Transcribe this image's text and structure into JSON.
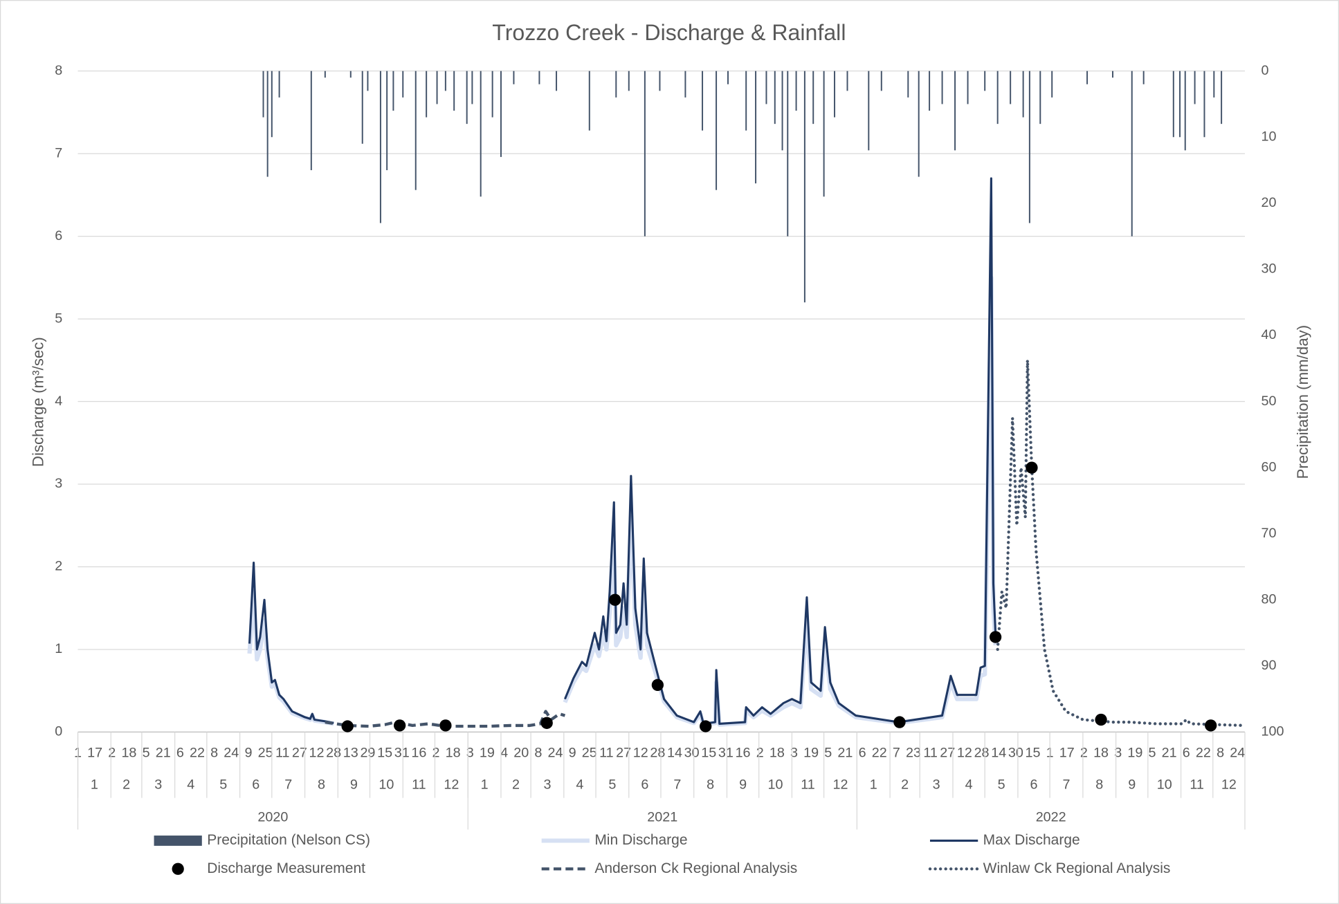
{
  "chart_data": {
    "type": "combo",
    "title": "Trozzo Creek - Discharge & Rainfall",
    "y_label": "Discharge  (m³/sec)",
    "y2_label": "Precipitation (mm/day)",
    "xlim": [
      "2020-01-01",
      "2022-12-31"
    ],
    "ylim": [
      0,
      8
    ],
    "yticks": [
      0,
      1,
      2,
      3,
      4,
      5,
      6,
      7,
      8
    ],
    "y2lim": [
      100,
      0
    ],
    "y2ticks": [
      0,
      10,
      20,
      30,
      40,
      50,
      60,
      70,
      80,
      90,
      100
    ],
    "grid": true,
    "legend": "bottom",
    "xticks": [
      {
        "value": "2020-01-01",
        "label": "1"
      },
      {
        "value": "2020-01-17",
        "label": "17"
      },
      {
        "value": "2020-02-02",
        "label": "2"
      },
      {
        "value": "2020-02-18",
        "label": "18"
      },
      {
        "value": "2020-03-05",
        "label": "5"
      },
      {
        "value": "2020-03-21",
        "label": "21"
      },
      {
        "value": "2020-04-06",
        "label": "6"
      },
      {
        "value": "2020-04-22",
        "label": "22"
      },
      {
        "value": "2020-05-08",
        "label": "8"
      },
      {
        "value": "2020-05-24",
        "label": "24"
      },
      {
        "value": "2020-06-09",
        "label": "9"
      },
      {
        "value": "2020-06-25",
        "label": "25"
      },
      {
        "value": "2020-07-11",
        "label": "11"
      },
      {
        "value": "2020-07-27",
        "label": "27"
      },
      {
        "value": "2020-08-12",
        "label": "12"
      },
      {
        "value": "2020-08-28",
        "label": "28"
      },
      {
        "value": "2020-09-13",
        "label": "13"
      },
      {
        "value": "2020-09-29",
        "label": "29"
      },
      {
        "value": "2020-10-15",
        "label": "15"
      },
      {
        "value": "2020-10-31",
        "label": "31"
      },
      {
        "value": "2020-11-16",
        "label": "16"
      },
      {
        "value": "2020-12-02",
        "label": "2"
      },
      {
        "value": "2020-12-18",
        "label": "18"
      },
      {
        "value": "2021-01-03",
        "label": "3"
      },
      {
        "value": "2021-01-19",
        "label": "19"
      },
      {
        "value": "2021-02-04",
        "label": "4"
      },
      {
        "value": "2021-02-20",
        "label": "20"
      },
      {
        "value": "2021-03-08",
        "label": "8"
      },
      {
        "value": "2021-03-24",
        "label": "24"
      },
      {
        "value": "2021-04-09",
        "label": "9"
      },
      {
        "value": "2021-04-25",
        "label": "25"
      },
      {
        "value": "2021-05-11",
        "label": "11"
      },
      {
        "value": "2021-05-27",
        "label": "27"
      },
      {
        "value": "2021-06-12",
        "label": "12"
      },
      {
        "value": "2021-06-28",
        "label": "28"
      },
      {
        "value": "2021-07-14",
        "label": "14"
      },
      {
        "value": "2021-07-30",
        "label": "30"
      },
      {
        "value": "2021-08-15",
        "label": "15"
      },
      {
        "value": "2021-08-31",
        "label": "31"
      },
      {
        "value": "2021-09-16",
        "label": "16"
      },
      {
        "value": "2021-10-02",
        "label": "2"
      },
      {
        "value": "2021-10-18",
        "label": "18"
      },
      {
        "value": "2021-11-03",
        "label": "3"
      },
      {
        "value": "2021-11-19",
        "label": "19"
      },
      {
        "value": "2021-12-05",
        "label": "5"
      },
      {
        "value": "2021-12-21",
        "label": "21"
      },
      {
        "value": "2022-01-06",
        "label": "6"
      },
      {
        "value": "2022-01-22",
        "label": "22"
      },
      {
        "value": "2022-02-07",
        "label": "7"
      },
      {
        "value": "2022-02-23",
        "label": "23"
      },
      {
        "value": "2022-03-11",
        "label": "11"
      },
      {
        "value": "2022-03-27",
        "label": "27"
      },
      {
        "value": "2022-04-12",
        "label": "12"
      },
      {
        "value": "2022-04-28",
        "label": "28"
      },
      {
        "value": "2022-05-14",
        "label": "14"
      },
      {
        "value": "2022-05-30",
        "label": "30"
      },
      {
        "value": "2022-06-15",
        "label": "15"
      },
      {
        "value": "2022-07-01",
        "label": "1"
      },
      {
        "value": "2022-07-17",
        "label": "17"
      },
      {
        "value": "2022-08-02",
        "label": "2"
      },
      {
        "value": "2022-08-18",
        "label": "18"
      },
      {
        "value": "2022-09-03",
        "label": "3"
      },
      {
        "value": "2022-09-19",
        "label": "19"
      },
      {
        "value": "2022-10-05",
        "label": "5"
      },
      {
        "value": "2022-10-21",
        "label": "21"
      },
      {
        "value": "2022-11-06",
        "label": "6"
      },
      {
        "value": "2022-11-22",
        "label": "22"
      },
      {
        "value": "2022-12-08",
        "label": "8"
      },
      {
        "value": "2022-12-24",
        "label": "24"
      }
    ],
    "months": [
      {
        "value": "2020-01",
        "label": "1"
      },
      {
        "value": "2020-02",
        "label": "2"
      },
      {
        "value": "2020-03",
        "label": "3"
      },
      {
        "value": "2020-04",
        "label": "4"
      },
      {
        "value": "2020-05",
        "label": "5"
      },
      {
        "value": "2020-06",
        "label": "6"
      },
      {
        "value": "2020-07",
        "label": "7"
      },
      {
        "value": "2020-08",
        "label": "8"
      },
      {
        "value": "2020-09",
        "label": "9"
      },
      {
        "value": "2020-10",
        "label": "10"
      },
      {
        "value": "2020-11",
        "label": "11"
      },
      {
        "value": "2020-12",
        "label": "12"
      },
      {
        "value": "2021-01",
        "label": "1"
      },
      {
        "value": "2021-02",
        "label": "2"
      },
      {
        "value": "2021-03",
        "label": "3"
      },
      {
        "value": "2021-04",
        "label": "4"
      },
      {
        "value": "2021-05",
        "label": "5"
      },
      {
        "value": "2021-06",
        "label": "6"
      },
      {
        "value": "2021-07",
        "label": "7"
      },
      {
        "value": "2021-08",
        "label": "8"
      },
      {
        "value": "2021-09",
        "label": "9"
      },
      {
        "value": "2021-10",
        "label": "10"
      },
      {
        "value": "2021-11",
        "label": "11"
      },
      {
        "value": "2021-12",
        "label": "12"
      },
      {
        "value": "2022-01",
        "label": "1"
      },
      {
        "value": "2022-02",
        "label": "2"
      },
      {
        "value": "2022-03",
        "label": "3"
      },
      {
        "value": "2022-04",
        "label": "4"
      },
      {
        "value": "2022-05",
        "label": "5"
      },
      {
        "value": "2022-06",
        "label": "6"
      },
      {
        "value": "2022-07",
        "label": "7"
      },
      {
        "value": "2022-08",
        "label": "8"
      },
      {
        "value": "2022-09",
        "label": "9"
      },
      {
        "value": "2022-10",
        "label": "10"
      },
      {
        "value": "2022-11",
        "label": "11"
      },
      {
        "value": "2022-12",
        "label": "12"
      }
    ],
    "years": [
      "2020",
      "2021",
      "2022"
    ],
    "series": [
      {
        "name": "Precipitation (Nelson CS)",
        "type": "bar",
        "axis": "y2",
        "color": "#44546a",
        "x": [
          "2020-06-23",
          "2020-06-27",
          "2020-07-01",
          "2020-07-08",
          "2020-08-07",
          "2020-08-20",
          "2020-09-13",
          "2020-09-24",
          "2020-09-29",
          "2020-10-11",
          "2020-10-17",
          "2020-10-23",
          "2020-11-01",
          "2020-11-13",
          "2020-11-23",
          "2020-12-03",
          "2020-12-11",
          "2020-12-19",
          "2020-12-31",
          "2021-01-05",
          "2021-01-13",
          "2021-01-24",
          "2021-02-01",
          "2021-02-13",
          "2021-03-09",
          "2021-03-25",
          "2021-04-25",
          "2021-05-20",
          "2021-06-01",
          "2021-06-16",
          "2021-06-30",
          "2021-07-24",
          "2021-08-09",
          "2021-08-22",
          "2021-09-02",
          "2021-09-19",
          "2021-09-28",
          "2021-10-08",
          "2021-10-16",
          "2021-10-23",
          "2021-10-28",
          "2021-11-05",
          "2021-11-13",
          "2021-11-21",
          "2021-12-01",
          "2021-12-11",
          "2021-12-23",
          "2022-01-12",
          "2022-01-24",
          "2022-02-18",
          "2022-02-28",
          "2022-03-10",
          "2022-03-22",
          "2022-04-03",
          "2022-04-15",
          "2022-05-01",
          "2022-05-13",
          "2022-05-25",
          "2022-06-06",
          "2022-06-12",
          "2022-06-22",
          "2022-07-03",
          "2022-08-05",
          "2022-08-29",
          "2022-09-16",
          "2022-09-27",
          "2022-10-25",
          "2022-10-31",
          "2022-11-05",
          "2022-11-14",
          "2022-11-23",
          "2022-12-02",
          "2022-12-09"
        ],
        "values": [
          7,
          16,
          10,
          4,
          15,
          1,
          1,
          11,
          3,
          23,
          15,
          6,
          4,
          18,
          7,
          5,
          3,
          6,
          8,
          5,
          19,
          7,
          13,
          2,
          2,
          3,
          9,
          4,
          3,
          25,
          3,
          4,
          9,
          18,
          2,
          9,
          17,
          5,
          8,
          12,
          25,
          6,
          35,
          8,
          19,
          7,
          3,
          12,
          3,
          4,
          16,
          6,
          5,
          12,
          5,
          3,
          8,
          5,
          7,
          23,
          8,
          4,
          2,
          1,
          25,
          2,
          10,
          10,
          12,
          5,
          10,
          4,
          8
        ]
      },
      {
        "name": "Min Discharge",
        "type": "line",
        "axis": "y",
        "color": "#d6e0f3",
        "width": 5,
        "x": [
          "2020-06-10",
          "2020-06-14",
          "2020-06-17",
          "2020-06-20",
          "2020-06-24",
          "2020-06-27",
          "2020-07-01",
          "2020-07-04",
          "2020-07-08",
          "2020-07-12",
          "2020-07-20",
          "2020-08-01",
          "2020-08-06",
          "2020-08-08",
          "2020-08-10",
          "2020-08-20",
          "2020-08-28",
          "2020-12-01",
          "2021-04-02",
          "2021-04-10",
          "2021-04-18",
          "2021-04-22",
          "2021-04-30",
          "2021-05-04",
          "2021-05-08",
          "2021-05-11",
          "2021-05-14",
          "2021-05-18",
          "2021-05-20",
          "2021-05-24",
          "2021-05-27",
          "2021-05-30",
          "2021-06-03",
          "2021-06-07",
          "2021-06-12",
          "2021-06-15",
          "2021-06-18",
          "2021-06-26",
          "2021-07-04",
          "2021-07-16",
          "2021-08-01",
          "2021-08-07",
          "2021-08-10",
          "2021-08-21",
          "2021-08-22",
          "2021-08-25",
          "2021-09-18",
          "2021-09-19",
          "2021-09-26",
          "2021-10-04",
          "2021-10-12",
          "2021-10-24",
          "2021-11-01",
          "2021-11-09",
          "2021-11-15",
          "2021-11-19",
          "2021-11-28",
          "2021-12-02",
          "2021-12-07",
          "2021-12-15",
          "2021-12-31",
          "2022-02-09",
          "2022-03-22",
          "2022-03-30",
          "2022-04-05",
          "2022-04-15",
          "2022-04-23",
          "2022-04-27",
          "2022-05-01",
          "2022-05-07",
          "2022-05-09",
          "2022-05-11"
        ],
        "values": [
          0.95,
          1.7,
          0.88,
          1.0,
          1.35,
          0.9,
          0.55,
          0.58,
          0.42,
          0.37,
          0.23,
          0.17,
          0.15,
          0.2,
          0.14,
          0.12,
          0.1,
          null,
          0.36,
          0.6,
          0.78,
          0.74,
          1.05,
          0.92,
          1.2,
          1.0,
          1.45,
          2.3,
          1.05,
          1.15,
          1.5,
          1.15,
          2.6,
          1.3,
          0.9,
          1.8,
          1.05,
          0.72,
          0.37,
          0.18,
          0.11,
          0.22,
          0.09,
          0.11,
          0.6,
          0.09,
          0.11,
          0.26,
          0.18,
          0.26,
          0.2,
          0.3,
          0.35,
          0.3,
          1.35,
          0.52,
          0.44,
          1.1,
          0.52,
          0.32,
          0.18,
          0.11,
          0.18,
          0.6,
          0.4,
          0.4,
          0.4,
          0.68,
          0.7,
          5.5,
          1.5,
          1.05
        ]
      },
      {
        "name": "Max Discharge",
        "type": "line",
        "axis": "y",
        "color": "#1f3864",
        "width": 2.5,
        "x": [
          "2020-06-10",
          "2020-06-14",
          "2020-06-17",
          "2020-06-20",
          "2020-06-24",
          "2020-06-27",
          "2020-07-01",
          "2020-07-04",
          "2020-07-08",
          "2020-07-12",
          "2020-07-20",
          "2020-08-01",
          "2020-08-06",
          "2020-08-08",
          "2020-08-10",
          "2020-08-20",
          "2020-08-28",
          "2020-12-01",
          "2021-04-02",
          "2021-04-10",
          "2021-04-18",
          "2021-04-22",
          "2021-04-30",
          "2021-05-04",
          "2021-05-08",
          "2021-05-11",
          "2021-05-14",
          "2021-05-18",
          "2021-05-20",
          "2021-05-24",
          "2021-05-27",
          "2021-05-30",
          "2021-06-03",
          "2021-06-07",
          "2021-06-12",
          "2021-06-15",
          "2021-06-18",
          "2021-06-26",
          "2021-07-04",
          "2021-07-16",
          "2021-08-01",
          "2021-08-07",
          "2021-08-10",
          "2021-08-21",
          "2021-08-22",
          "2021-08-25",
          "2021-09-18",
          "2021-09-19",
          "2021-09-26",
          "2021-10-04",
          "2021-10-12",
          "2021-10-24",
          "2021-11-01",
          "2021-11-09",
          "2021-11-15",
          "2021-11-19",
          "2021-11-28",
          "2021-12-02",
          "2021-12-07",
          "2021-12-15",
          "2021-12-31",
          "2022-02-09",
          "2022-03-22",
          "2022-03-30",
          "2022-04-05",
          "2022-04-15",
          "2022-04-23",
          "2022-04-27",
          "2022-05-01",
          "2022-05-07",
          "2022-05-09",
          "2022-05-11"
        ],
        "values": [
          1.07,
          2.05,
          1.0,
          1.15,
          1.6,
          1.0,
          0.6,
          0.63,
          0.45,
          0.4,
          0.25,
          0.18,
          0.16,
          0.22,
          0.15,
          0.13,
          0.11,
          null,
          0.4,
          0.65,
          0.85,
          0.8,
          1.2,
          1.0,
          1.4,
          1.1,
          1.7,
          2.78,
          1.2,
          1.3,
          1.8,
          1.3,
          3.1,
          1.5,
          1.0,
          2.1,
          1.2,
          0.8,
          0.4,
          0.2,
          0.12,
          0.25,
          0.1,
          0.12,
          0.75,
          0.1,
          0.12,
          0.3,
          0.2,
          0.3,
          0.22,
          0.35,
          0.4,
          0.35,
          1.63,
          0.6,
          0.5,
          1.27,
          0.6,
          0.35,
          0.2,
          0.12,
          0.2,
          0.68,
          0.45,
          0.45,
          0.45,
          0.78,
          0.8,
          6.7,
          1.8,
          1.2
        ]
      },
      {
        "name": "Discharge Measurement",
        "type": "scatter",
        "axis": "y",
        "color": "#000000",
        "x": [
          "2020-09-10",
          "2020-10-29",
          "2020-12-11",
          "2021-03-16",
          "2021-05-19",
          "2021-06-28",
          "2021-08-12",
          "2022-02-10",
          "2022-05-11",
          "2022-06-14",
          "2022-08-18",
          "2022-11-29"
        ],
        "values": [
          0.07,
          0.08,
          0.08,
          0.11,
          1.6,
          0.57,
          0.07,
          0.12,
          1.15,
          3.2,
          0.15,
          0.08
        ]
      },
      {
        "name": "Anderson Ck Regional Analysis",
        "type": "line",
        "axis": "y",
        "color": "#44546a",
        "width": 3.5,
        "dash": "dashed",
        "x": [
          "2020-08-20",
          "2020-09-10",
          "2020-09-30",
          "2020-10-15",
          "2020-10-25",
          "2020-11-10",
          "2020-11-25",
          "2020-12-10",
          "2020-12-30",
          "2021-01-20",
          "2021-02-10",
          "2021-02-28",
          "2021-03-10",
          "2021-03-15",
          "2021-03-20",
          "2021-03-28",
          "2021-04-02"
        ],
        "values": [
          0.12,
          0.08,
          0.07,
          0.09,
          0.12,
          0.08,
          0.1,
          0.07,
          0.07,
          0.07,
          0.08,
          0.08,
          0.1,
          0.25,
          0.15,
          0.22,
          0.2
        ]
      },
      {
        "name": "Winlaw Ck Regional Analysis",
        "type": "line",
        "axis": "y",
        "color": "#44546a",
        "width": 3.5,
        "dash": "dotted",
        "x": [
          "2022-05-13",
          "2022-05-17",
          "2022-05-21",
          "2022-05-27",
          "2022-05-31",
          "2022-06-04",
          "2022-06-08",
          "2022-06-10",
          "2022-06-14",
          "2022-06-18",
          "2022-06-26",
          "2022-07-04",
          "2022-07-16",
          "2022-08-01",
          "2022-08-29",
          "2022-09-14",
          "2022-10-09",
          "2022-11-02",
          "2022-11-06",
          "2022-11-10",
          "2022-12-04",
          "2022-12-31"
        ],
        "values": [
          1.0,
          1.7,
          1.5,
          3.8,
          2.5,
          3.2,
          2.6,
          4.5,
          3.2,
          2.2,
          1.0,
          0.5,
          0.25,
          0.15,
          0.12,
          0.12,
          0.1,
          0.1,
          0.15,
          0.1,
          0.09,
          0.08
        ]
      }
    ]
  }
}
